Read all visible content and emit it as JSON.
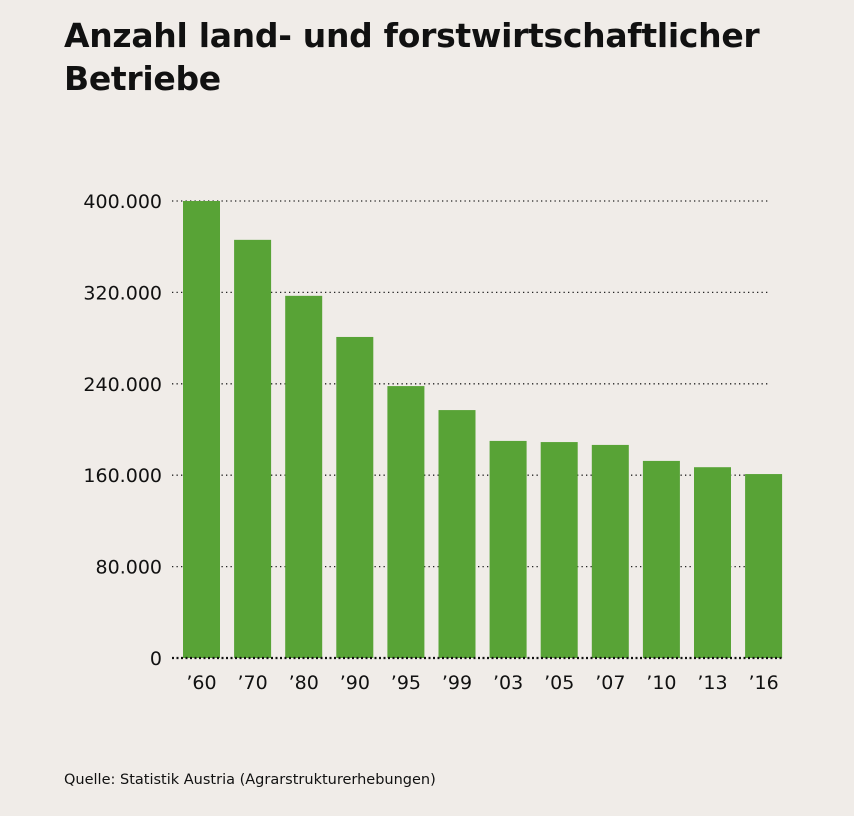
{
  "chart_data": {
    "type": "bar",
    "title": "Anzahl land- und forstwirtschaftlicher Betriebe",
    "source": "Quelle: Statistik Austria (Agrarstrukturerhebungen)",
    "categories": [
      "’60",
      "’70",
      "’80",
      "’90",
      "’95",
      "’99",
      "’03",
      "’05",
      "’07",
      "’10",
      "’13",
      "’16"
    ],
    "values": [
      400000,
      366000,
      317000,
      281000,
      238000,
      217000,
      190000,
      189000,
      186500,
      172500,
      167000,
      161000
    ],
    "ylim": [
      0,
      400000
    ],
    "yticks": [
      0,
      80000,
      160000,
      240000,
      320000,
      400000
    ],
    "ytick_labels": [
      "0",
      "80.000",
      "160.000",
      "240.000",
      "320.000",
      "400.000"
    ],
    "xlabel": "",
    "ylabel": "",
    "grid": "horizontal dotted",
    "bar_color": "#58a336",
    "background": "#f0ece8"
  }
}
